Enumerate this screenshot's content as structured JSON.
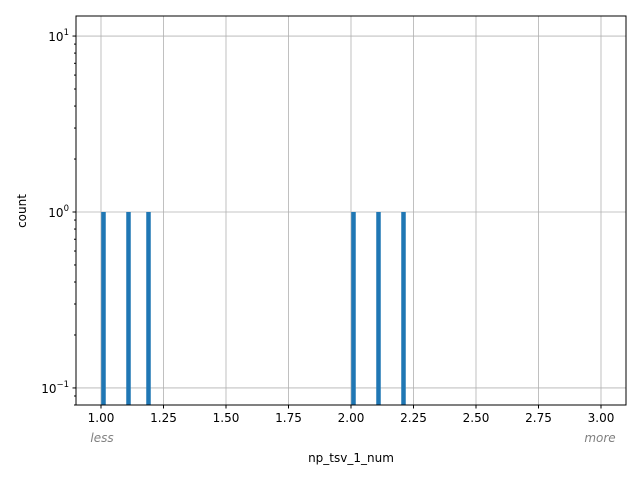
{
  "chart_data": {
    "type": "bar",
    "title": "",
    "xlabel": "np_tsv_1_num",
    "ylabel": "count",
    "yscale": "log",
    "xlim": [
      0.9,
      3.1
    ],
    "ylim": [
      0.08,
      13
    ],
    "grid": true,
    "x_ticks": [
      "1.00",
      "1.25",
      "1.50",
      "1.75",
      "2.00",
      "2.25",
      "2.50",
      "2.75",
      "3.00"
    ],
    "y_ticks": [
      {
        "value": 0.1,
        "base": "10",
        "exp": "−1"
      },
      {
        "value": 1,
        "base": "10",
        "exp": "0"
      },
      {
        "value": 10,
        "base": "10",
        "exp": "1"
      }
    ],
    "annotations": {
      "left": "less",
      "right": "more"
    },
    "bars": [
      {
        "x": 1.01,
        "value": 1
      },
      {
        "x": 1.11,
        "value": 1
      },
      {
        "x": 1.19,
        "value": 1
      },
      {
        "x": 2.01,
        "value": 1
      },
      {
        "x": 2.11,
        "value": 1
      },
      {
        "x": 2.21,
        "value": 1
      }
    ],
    "color": "#1f77b4"
  }
}
